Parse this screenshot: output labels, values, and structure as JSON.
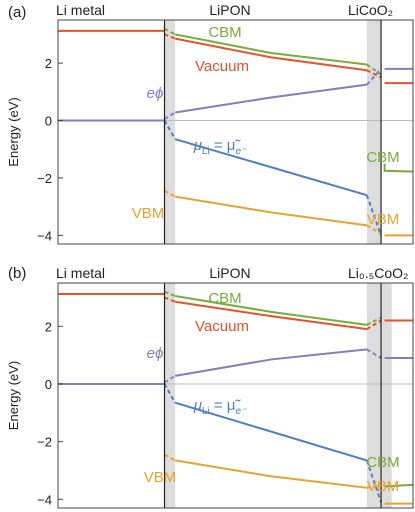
{
  "colors": {
    "cbm": "#7aac3b",
    "vacuum": "#e5532c",
    "phi": "#8a7bbf",
    "mu": "#4e7ec0",
    "vbm": "#e8a330",
    "shade": "#dddddd",
    "axis": "#444444"
  },
  "chart_data": [
    {
      "type": "line",
      "panel_label": "(a)",
      "ylabel": "Energy (eV)",
      "ylim": [
        -4.3,
        3.5
      ],
      "yticks": [
        -4,
        -2,
        0,
        2
      ],
      "xlim": [
        0,
        100
      ],
      "region_labels": [
        {
          "text": "Li metal",
          "pos": 0
        },
        {
          "text": "LiPON",
          "pos": 1
        },
        {
          "text": "LiCoO₂",
          "pos": 2
        }
      ],
      "interfaces": [
        30,
        91
      ],
      "shaded": [
        [
          30,
          33
        ],
        [
          87,
          91
        ]
      ],
      "series": [
        {
          "key": "cbm",
          "points": [
            [
              33,
              3.0
            ],
            [
              60,
              2.35
            ],
            [
              87,
              1.95
            ]
          ],
          "dashed_to": [
            [
              30,
              3.2
            ],
            [
              33,
              3.0
            ]
          ],
          "dashed_from": [
            [
              87,
              1.95
            ],
            [
              91,
              1.6
            ]
          ]
        },
        {
          "key": "vacuum",
          "points": [
            [
              0,
              3.12
            ],
            [
              30,
              3.12
            ]
          ],
          "dashed_to": [],
          "dashed_from": []
        },
        {
          "key": "vacuum_lipon",
          "color_key": "vacuum",
          "points": [
            [
              33,
              2.85
            ],
            [
              60,
              2.2
            ],
            [
              87,
              1.75
            ]
          ],
          "dashed_to": [
            [
              30,
              3.0
            ],
            [
              33,
              2.85
            ]
          ],
          "dashed_from": [
            [
              87,
              1.75
            ],
            [
              91,
              1.5
            ]
          ]
        },
        {
          "key": "vacuum_cathode",
          "color_key": "vacuum",
          "points": [
            [
              92,
              1.3
            ],
            [
              100,
              1.3
            ]
          ],
          "dashed_to": [],
          "dashed_from": []
        },
        {
          "key": "phi",
          "points": [
            [
              0,
              0
            ],
            [
              30,
              0
            ]
          ],
          "dashed_to": [],
          "dashed_from": []
        },
        {
          "key": "phi_lipon",
          "color_key": "phi",
          "points": [
            [
              33,
              0.28
            ],
            [
              60,
              0.8
            ],
            [
              87,
              1.25
            ]
          ],
          "dashed_to": [
            [
              30,
              0.05
            ],
            [
              33,
              0.28
            ]
          ],
          "dashed_from": [
            [
              87,
              1.25
            ],
            [
              91,
              1.8
            ]
          ]
        },
        {
          "key": "phi_cathode",
          "color_key": "phi",
          "points": [
            [
              92,
              1.8
            ],
            [
              100,
              1.8
            ]
          ],
          "dashed_to": [],
          "dashed_from": []
        },
        {
          "key": "mu",
          "points": [
            [
              33,
              -0.65
            ],
            [
              87,
              -2.6
            ]
          ],
          "dashed_to": [
            [
              30,
              0
            ],
            [
              33,
              -0.65
            ]
          ],
          "dashed_from": [
            [
              87,
              -2.6
            ],
            [
              91,
              -4.0
            ]
          ]
        },
        {
          "key": "cbm_cathode",
          "color_key": "cbm",
          "points": [
            [
              92,
              -1.5
            ],
            [
              92,
              -1.75
            ],
            [
              100,
              -1.78
            ]
          ],
          "dashed_to": [],
          "dashed_from": []
        },
        {
          "key": "vbm",
          "points": [
            [
              33,
              -2.65
            ],
            [
              60,
              -3.2
            ],
            [
              87,
              -3.65
            ]
          ],
          "dashed_to": [
            [
              30,
              -2.45
            ],
            [
              33,
              -2.65
            ]
          ],
          "dashed_from": [
            [
              87,
              -3.65
            ],
            [
              91,
              -3.95
            ]
          ]
        },
        {
          "key": "vbm_cathode",
          "color_key": "vbm",
          "points": [
            [
              92,
              -4.0
            ],
            [
              100,
              -4.0
            ]
          ],
          "dashed_to": [],
          "dashed_from": []
        }
      ],
      "annotations": [
        {
          "text": "CBM",
          "key": "cbm"
        },
        {
          "text": "Vacuum",
          "key": "vacuum"
        },
        {
          "text": "eϕ",
          "key": "phi"
        },
        {
          "text": "μ",
          "sub": "Li",
          "eq": " = μ̃",
          "sub2": "e⁻",
          "key": "mu"
        },
        {
          "text": "VBM",
          "key": "vbm"
        },
        {
          "text": "CBM",
          "key": "cbm_r"
        },
        {
          "text": "VBM",
          "key": "vbm_r"
        }
      ]
    },
    {
      "type": "line",
      "panel_label": "(b)",
      "ylabel": "Energy (eV)",
      "ylim": [
        -4.3,
        3.5
      ],
      "yticks": [
        -4,
        -2,
        0,
        2
      ],
      "xlim": [
        0,
        100
      ],
      "region_labels": [
        {
          "text": "Li metal",
          "pos": 0
        },
        {
          "text": "LiPON",
          "pos": 1
        },
        {
          "text": "Li₀.₅CoO₂",
          "pos": 2
        }
      ],
      "interfaces": [
        30,
        91
      ],
      "shaded": [
        [
          30,
          33
        ],
        [
          87,
          91
        ],
        [
          91,
          94
        ]
      ],
      "series": [
        {
          "key": "cbm",
          "points": [
            [
              33,
              3.05
            ],
            [
              60,
              2.5
            ],
            [
              87,
              2.05
            ]
          ],
          "dashed_to": [
            [
              30,
              3.2
            ],
            [
              33,
              3.05
            ]
          ],
          "dashed_from": [
            [
              87,
              2.05
            ],
            [
              91,
              2.3
            ]
          ]
        },
        {
          "key": "vacuum",
          "points": [
            [
              0,
              3.12
            ],
            [
              30,
              3.12
            ]
          ],
          "dashed_to": [],
          "dashed_from": []
        },
        {
          "key": "vacuum_lipon",
          "color_key": "vacuum",
          "points": [
            [
              33,
              2.85
            ],
            [
              60,
              2.35
            ],
            [
              87,
              1.9
            ]
          ],
          "dashed_to": [
            [
              30,
              3.0
            ],
            [
              33,
              2.85
            ]
          ],
          "dashed_from": [
            [
              87,
              1.9
            ],
            [
              91,
              2.2
            ]
          ]
        },
        {
          "key": "vacuum_cathode",
          "color_key": "vacuum",
          "points": [
            [
              92,
              2.2
            ],
            [
              100,
              2.2
            ]
          ],
          "dashed_to": [],
          "dashed_from": []
        },
        {
          "key": "phi",
          "points": [
            [
              0,
              0
            ],
            [
              30,
              0
            ]
          ],
          "dashed_to": [],
          "dashed_from": []
        },
        {
          "key": "phi_lipon",
          "color_key": "phi",
          "points": [
            [
              33,
              0.28
            ],
            [
              60,
              0.85
            ],
            [
              87,
              1.2
            ]
          ],
          "dashed_to": [
            [
              30,
              0.05
            ],
            [
              33,
              0.28
            ]
          ],
          "dashed_from": [
            [
              87,
              1.2
            ],
            [
              91,
              0.9
            ]
          ]
        },
        {
          "key": "phi_cathode",
          "color_key": "phi",
          "points": [
            [
              92,
              0.9
            ],
            [
              100,
              0.9
            ]
          ],
          "dashed_to": [],
          "dashed_from": []
        },
        {
          "key": "mu",
          "points": [
            [
              33,
              -0.65
            ],
            [
              87,
              -2.65
            ]
          ],
          "dashed_to": [
            [
              30,
              0
            ],
            [
              33,
              -0.65
            ]
          ],
          "dashed_from": [
            [
              87,
              -2.65
            ],
            [
              91,
              -4.1
            ]
          ]
        },
        {
          "key": "cbm_cathode",
          "color_key": "cbm",
          "points": [
            [
              92,
              -3.55
            ],
            [
              100,
              -3.5
            ]
          ],
          "dashed_to": [],
          "dashed_from": []
        },
        {
          "key": "vbm",
          "points": [
            [
              33,
              -2.65
            ],
            [
              60,
              -3.2
            ],
            [
              87,
              -3.6
            ]
          ],
          "dashed_to": [
            [
              30,
              -2.45
            ],
            [
              33,
              -2.65
            ]
          ],
          "dashed_from": [
            [
              87,
              -3.6
            ],
            [
              91,
              -3.5
            ]
          ]
        },
        {
          "key": "vbm_cathode",
          "color_key": "vbm",
          "points": [
            [
              92,
              -4.15
            ],
            [
              100,
              -4.15
            ]
          ],
          "dashed_to": [],
          "dashed_from": []
        }
      ],
      "annotations": [
        {
          "text": "CBM",
          "key": "cbm"
        },
        {
          "text": "Vacuum",
          "key": "vacuum"
        },
        {
          "text": "eϕ",
          "key": "phi"
        },
        {
          "text": "μ",
          "sub": "Li",
          "eq": " = μ̃",
          "sub2": "e⁻",
          "key": "mu"
        },
        {
          "text": "VBM",
          "key": "vbm"
        },
        {
          "text": "CBM",
          "key": "cbm_r"
        },
        {
          "text": "VBM",
          "key": "vbm_r"
        }
      ]
    }
  ]
}
